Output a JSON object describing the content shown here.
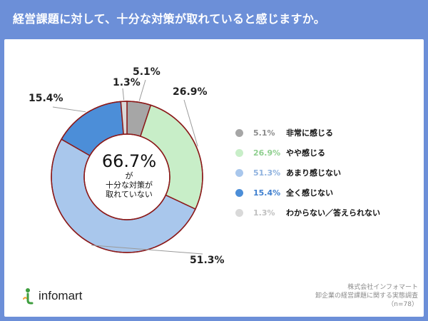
{
  "title": "経営課題に対して、十分な対策が取れていると感じますか。",
  "chart_data": {
    "type": "pie",
    "donut": true,
    "slices": [
      {
        "label": "非常に感じる",
        "value": 5.1,
        "pct_text": "5.1%",
        "callout": "5.1%",
        "color": "#a6a6a6"
      },
      {
        "label": "やや感じる",
        "value": 26.9,
        "pct_text": "26.9%",
        "callout": "26.9%",
        "color": "#c8eec8"
      },
      {
        "label": "あまり感じない",
        "value": 51.3,
        "pct_text": "51.3%",
        "callout": "51.3%",
        "color": "#a9c7ec"
      },
      {
        "label": "全く感じない",
        "value": 15.4,
        "pct_text": "15.4%",
        "callout": "15.4%",
        "color": "#4c8ed8"
      },
      {
        "label": "わからない／答えられない",
        "value": 1.3,
        "pct_text": "1.3%",
        "callout": "1.3%",
        "color": "#d9d9d9"
      }
    ],
    "legend_text_colors": [
      "#8c8c8c",
      "#8fcf8f",
      "#8fb2df",
      "#3f7fcf",
      "#c0c0c0"
    ],
    "border_color": "#8b1a1a",
    "center": {
      "big": "66.7%",
      "small_lines": [
        "が",
        "十分な対策が",
        "取れていない"
      ]
    },
    "legend_position": "right"
  },
  "logo": {
    "text": "infomart"
  },
  "footer": {
    "lines": [
      "株式会社インフォマート",
      "卸企業の経営課題に関する実態調査",
      "（n=78）"
    ]
  }
}
